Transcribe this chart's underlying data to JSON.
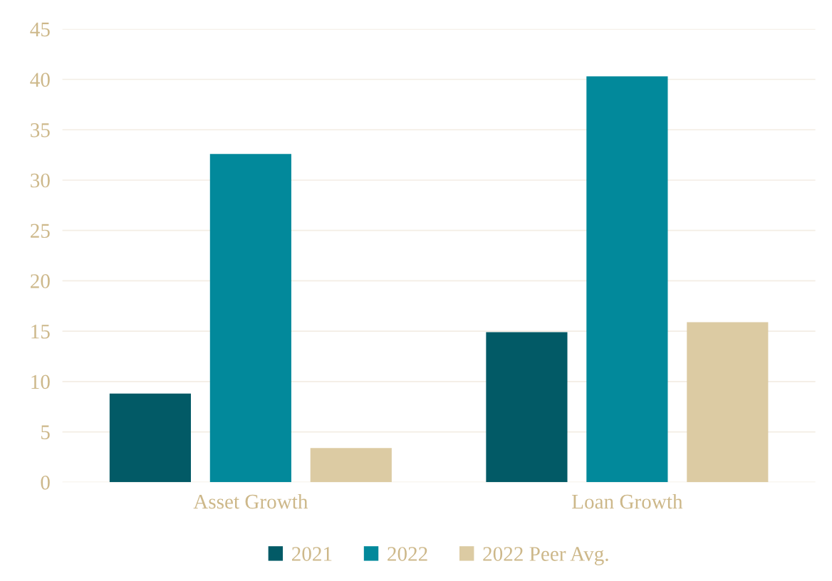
{
  "chart_data": {
    "type": "bar",
    "categories": [
      "Asset Growth",
      "Loan Growth"
    ],
    "series": [
      {
        "name": "2021",
        "color": "#025a66",
        "values": [
          8.8,
          14.9
        ]
      },
      {
        "name": "2022",
        "color": "#02899b",
        "values": [
          32.6,
          40.3
        ]
      },
      {
        "name": "2022 Peer Avg.",
        "color": "#dccba3",
        "values": [
          3.4,
          15.9
        ]
      }
    ],
    "ylim": [
      0,
      45
    ],
    "yticks": [
      0,
      5,
      10,
      15,
      20,
      25,
      30,
      35,
      40,
      45
    ],
    "grid": "y",
    "legend": "bottom"
  }
}
